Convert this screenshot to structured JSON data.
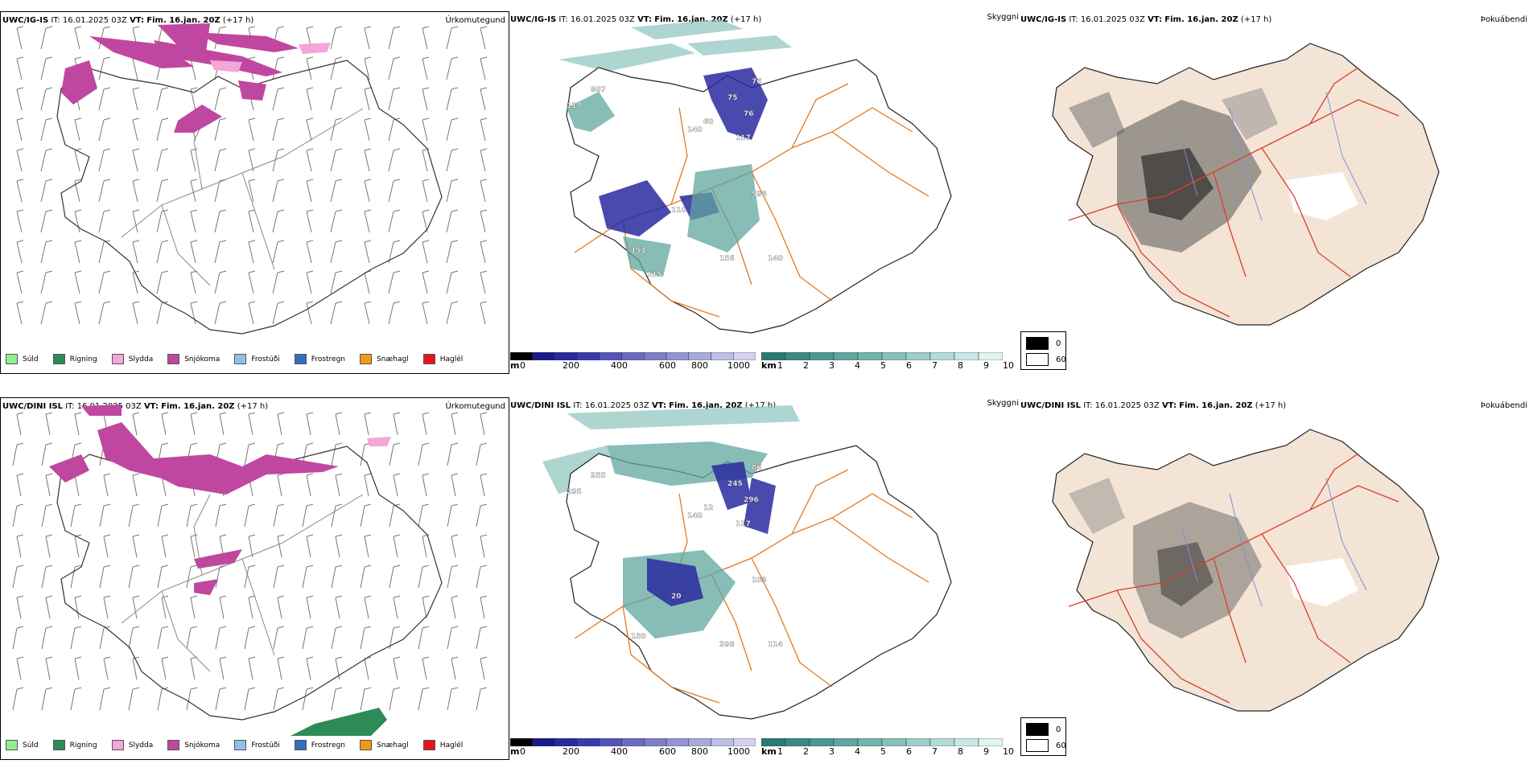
{
  "rows": [
    {
      "precip": {
        "model": "UWC/IG-IS",
        "it": "IT: 16.01.2025 03Z",
        "vt_label": "VT:",
        "vt_value": "Fim. 16.jan. 20Z",
        "lead": "(+17 h)",
        "product": "Úrkomutegund"
      },
      "cloud": {
        "model": "UWC/IG-IS",
        "it": "IT: 16.01.2025 03Z",
        "vt_label": "VT:",
        "vt_value": "Fim. 16.jan. 20Z",
        "lead": "(+17 h)",
        "product": "Skyggni",
        "labels": [
          "807",
          "117",
          "76",
          "75",
          "76",
          "60",
          "117",
          "140",
          "598",
          "110",
          "156",
          "140",
          "151",
          "115"
        ]
      },
      "fog": {
        "model": "UWC/IG-IS",
        "it": "IT: 16.01.2025 03Z",
        "vt_label": "VT:",
        "vt_value": "Fim. 16.jan. 20Z",
        "lead": "(+17 h)",
        "product": "Þokuábendi"
      }
    },
    {
      "precip": {
        "model": "UWC/DINI ISL",
        "it": "IT: 16.01.2025 03Z",
        "vt_label": "VT:",
        "vt_value": "Fim. 16.jan. 20Z",
        "lead": "(+17 h)",
        "product": "Úrkomutegund"
      },
      "cloud": {
        "model": "UWC/DINI ISL",
        "it": "IT: 16.01.2025 03Z",
        "vt_label": "VT:",
        "vt_value": "Fim. 16.jan. 20Z",
        "lead": "(+17 h)",
        "product": "Skyggni",
        "labels": [
          "355",
          "295",
          "86",
          "245",
          "296",
          "12",
          "117",
          "140",
          "103",
          "20",
          "398",
          "114",
          "150"
        ]
      },
      "fog": {
        "model": "UWC/DINI ISL",
        "it": "IT: 16.01.2025 03Z",
        "vt_label": "VT:",
        "vt_value": "Fim. 16.jan. 20Z",
        "lead": "(+17 h)",
        "product": "Þokuábendi"
      }
    }
  ],
  "precip_legend": [
    {
      "label": "Súld",
      "color": "#90ee90"
    },
    {
      "label": "Rigning",
      "color": "#2e8b57"
    },
    {
      "label": "Slydda",
      "color": "#f2a7d8"
    },
    {
      "label": "Snjókoma",
      "color": "#c0479f"
    },
    {
      "label": "Frostúði",
      "color": "#8fbff0"
    },
    {
      "label": "Frostregn",
      "color": "#2f6fbf"
    },
    {
      "label": "Snæhagl",
      "color": "#f09a1a"
    },
    {
      "label": "Haglél",
      "color": "#e8141a"
    }
  ],
  "ceiling_scale": {
    "unit": "m",
    "ticks": [
      "0",
      "200",
      "400",
      "600",
      "800",
      "1000"
    ],
    "colors": [
      "#000000",
      "#1a1a8a",
      "#2a2aa0",
      "#3a3ab0",
      "#5555b8",
      "#6b6bc0",
      "#7f7fc8",
      "#9494d2",
      "#a9a9dc",
      "#bebee6",
      "#d3d3f0"
    ]
  },
  "visibility_scale": {
    "unit": "km",
    "ticks": [
      "1",
      "2",
      "3",
      "4",
      "5",
      "6",
      "7",
      "8",
      "9",
      "10"
    ],
    "colors": [
      "#2b7b74",
      "#3a8a83",
      "#4c9891",
      "#5fa69f",
      "#73b3ad",
      "#88c1bb",
      "#9dcec9",
      "#b3dbd7",
      "#c9e8e5",
      "#e0f3f1"
    ]
  },
  "fog_scale": {
    "high_label": "0",
    "low_label": "60",
    "high_color": "#000000",
    "low_color": "#ffffff"
  },
  "colors": {
    "snow": "#c0479f",
    "rain": "#2e8b57",
    "sleet": "#f2a7d8",
    "road": "#e07a20",
    "teal": "#5fa69f",
    "blue": "#2a2aa0",
    "land": "#f4e4d6",
    "redline": "#d8402a",
    "river": "#7b8fd8"
  }
}
